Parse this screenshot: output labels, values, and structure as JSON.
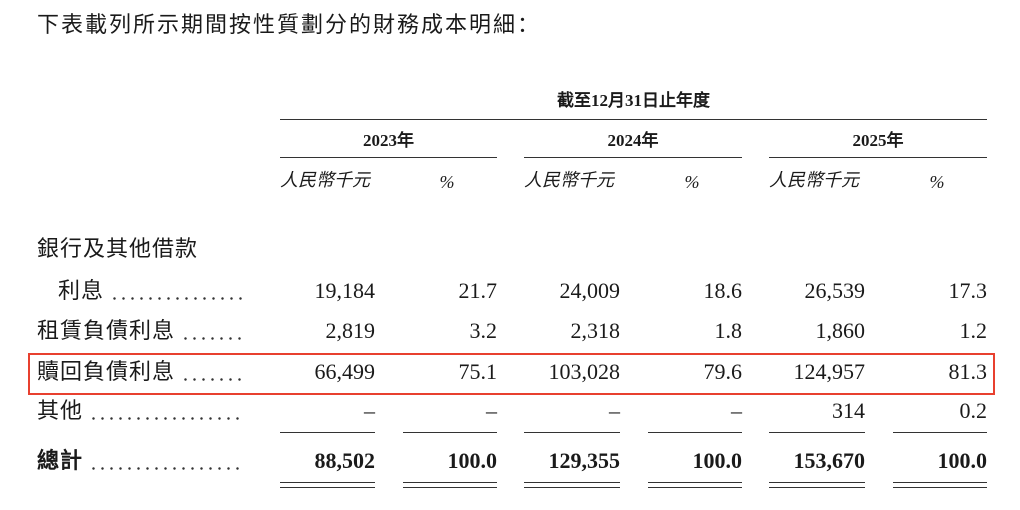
{
  "intro": "下表載列所示期間按性質劃分的財務成本明細：",
  "header": {
    "period": "截至12月31日止年度",
    "columns": [
      {
        "year": "2023年",
        "unit_amount": "人民幣千元",
        "unit_pct": "%"
      },
      {
        "year": "2024年",
        "unit_amount": "人民幣千元",
        "unit_pct": "%"
      },
      {
        "year": "2025年",
        "unit_amount": "人民幣千元",
        "unit_pct": "%"
      }
    ]
  },
  "group_label": "銀行及其他借款",
  "rows": [
    {
      "label": "利息",
      "values": [
        "19,184",
        "21.7",
        "24,009",
        "18.6",
        "26,539",
        "17.3"
      ]
    },
    {
      "label": "租賃負債利息",
      "values": [
        "2,819",
        "3.2",
        "2,318",
        "1.8",
        "1,860",
        "1.2"
      ]
    },
    {
      "label": "贖回負債利息",
      "values": [
        "66,499",
        "75.1",
        "103,028",
        "79.6",
        "124,957",
        "81.3"
      ]
    },
    {
      "label": "其他",
      "values": [
        "–",
        "–",
        "–",
        "–",
        "314",
        "0.2"
      ]
    }
  ],
  "total": {
    "label": "總計",
    "values": [
      "88,502",
      "100.0",
      "129,355",
      "100.0",
      "153,670",
      "100.0"
    ]
  }
}
